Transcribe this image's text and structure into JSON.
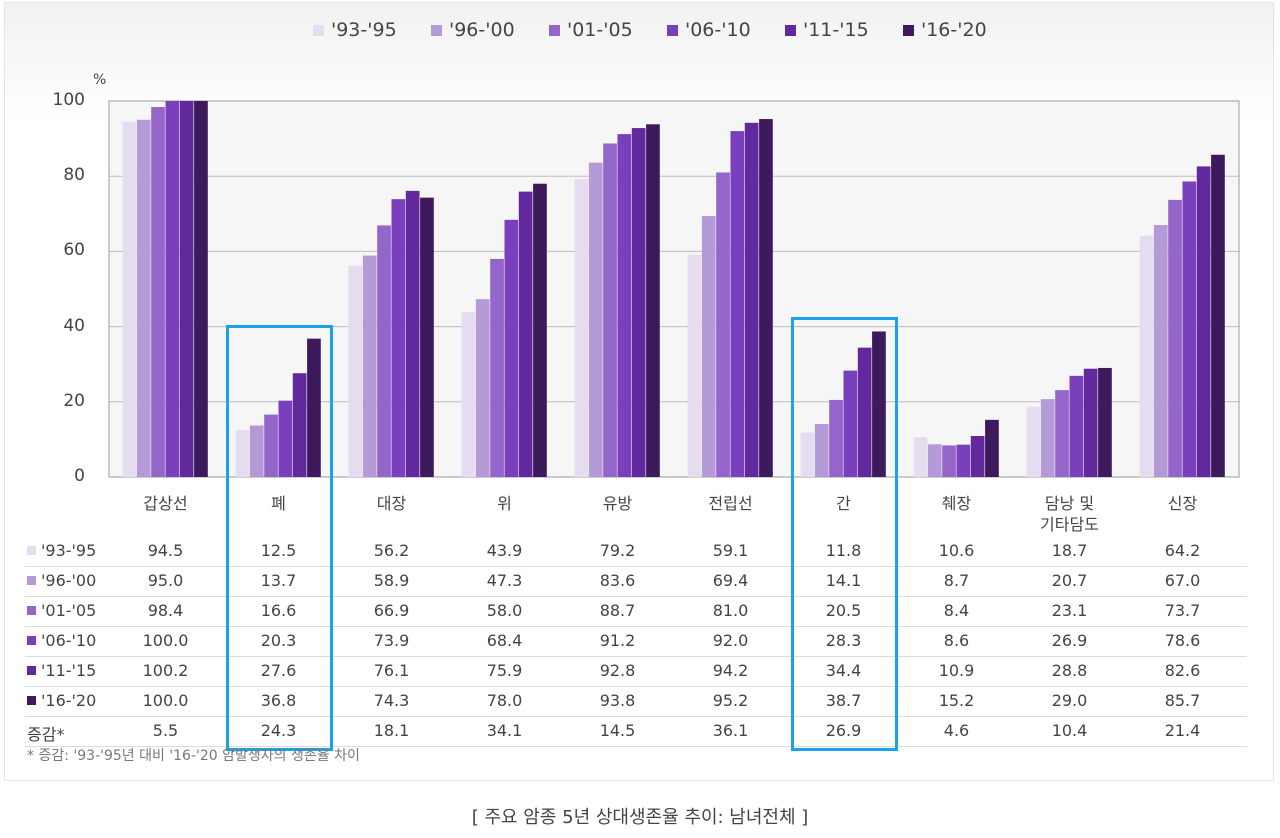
{
  "chart_data": {
    "type": "bar",
    "title": "주요 암종 5년 상대생존율 추이: 남녀전체",
    "ylabel": "%",
    "ylim": [
      0,
      100
    ],
    "yticks": [
      0,
      20,
      40,
      60,
      80,
      100
    ],
    "categories": [
      "갑상선",
      "폐",
      "대장",
      "위",
      "유방",
      "전립선",
      "간",
      "췌장",
      "담낭 및\n기타담도",
      "신장"
    ],
    "series": [
      {
        "name": "'93-'95",
        "color": "#e6dcef",
        "values": [
          94.5,
          12.5,
          56.2,
          43.9,
          79.2,
          59.1,
          11.8,
          10.6,
          18.7,
          64.2
        ]
      },
      {
        "name": "'96-'00",
        "color": "#b49ad6",
        "values": [
          95.0,
          13.7,
          58.9,
          47.3,
          83.6,
          69.4,
          14.1,
          8.7,
          20.7,
          67.0
        ]
      },
      {
        "name": "'01-'05",
        "color": "#9466c9",
        "values": [
          98.4,
          16.6,
          66.9,
          58.0,
          88.7,
          81.0,
          20.5,
          8.4,
          23.1,
          73.7
        ]
      },
      {
        "name": "'06-'10",
        "color": "#7a3fbd",
        "values": [
          100.0,
          20.3,
          73.9,
          68.4,
          91.2,
          92.0,
          28.3,
          8.6,
          26.9,
          78.6
        ]
      },
      {
        "name": "'11-'15",
        "color": "#62289e",
        "values": [
          100.2,
          27.6,
          76.1,
          75.9,
          92.8,
          94.2,
          34.4,
          10.9,
          28.8,
          82.6
        ]
      },
      {
        "name": "'16-'20",
        "color": "#3c1a5c",
        "values": [
          100.0,
          36.8,
          74.3,
          78.0,
          93.8,
          95.2,
          38.7,
          15.2,
          29.0,
          85.7
        ]
      }
    ],
    "change_label": "증감*",
    "change_values": [
      "5.5",
      "24.3",
      "18.1",
      "34.1",
      "14.5",
      "36.1",
      "26.9",
      "4.6",
      "10.4",
      "21.4"
    ],
    "highlighted_categories": [
      "폐",
      "간"
    ]
  },
  "footnote": "* 증감: '93-'95년 대비 '16-'20 암발생자의 생존율 차이",
  "caption": "[ 주요 암종 5년 상대생존율 추이: 남녀전체 ]"
}
